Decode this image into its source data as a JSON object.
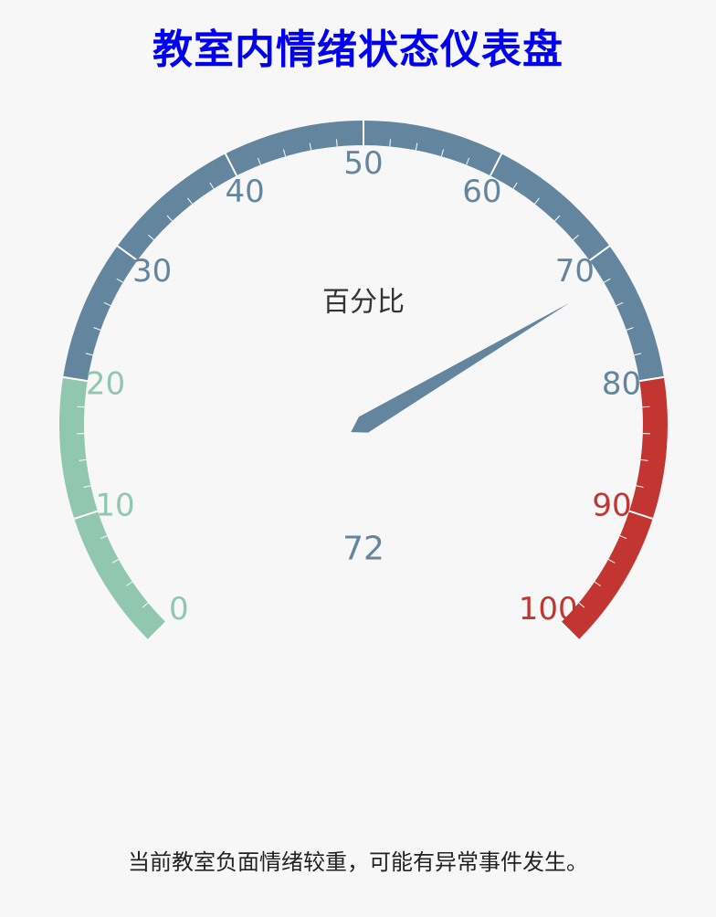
{
  "page": {
    "title": "教室内情绪状态仪表盘",
    "status_message": "当前教室负面情绪较重，可能有异常事件发生。"
  },
  "chart_data": {
    "type": "gauge",
    "title": "教室内情绪状态仪表盘",
    "label": "百分比",
    "value": 72,
    "value_text": "72",
    "min": 0,
    "max": 100,
    "tick_labels": [
      "0",
      "10",
      "20",
      "30",
      "40",
      "50",
      "60",
      "70",
      "80",
      "90",
      "100"
    ],
    "bands": [
      {
        "from": 0,
        "to": 20,
        "color": "#91c7ae"
      },
      {
        "from": 20,
        "to": 80,
        "color": "#63869e"
      },
      {
        "from": 80,
        "to": 100,
        "color": "#c23531"
      }
    ],
    "pointer_color": "#63869e",
    "value_color": "#63869e"
  }
}
